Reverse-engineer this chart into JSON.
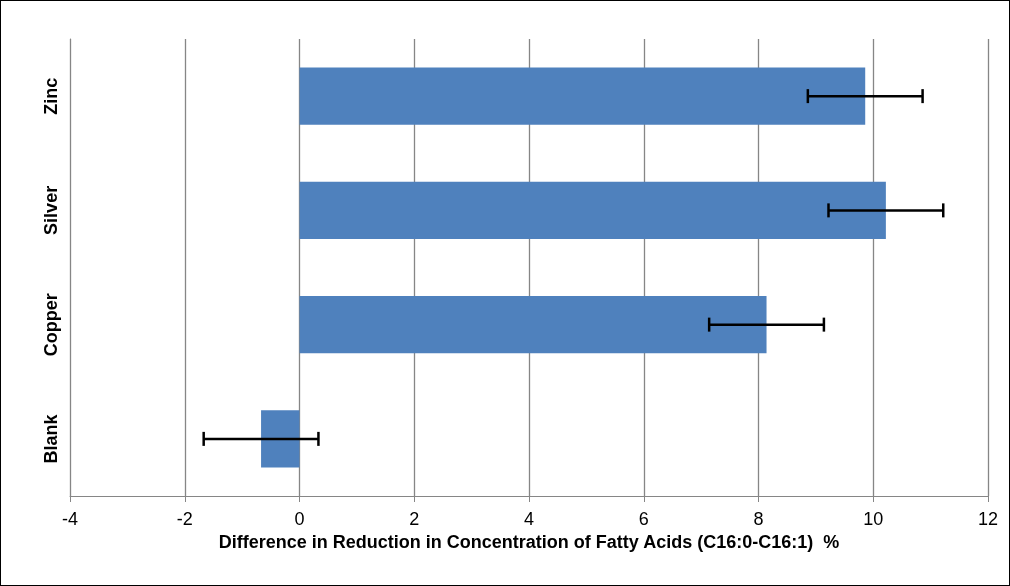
{
  "chart_data": {
    "type": "bar",
    "orientation": "horizontal",
    "xlabel": "Difference in Reduction in Concentration of Fatty Acids (C16:0-C16:1)  %",
    "categories": [
      "Zinc",
      "Silver",
      "Copper",
      "Blank"
    ],
    "values": [
      9.86,
      10.22,
      8.14,
      -0.67
    ],
    "errors": [
      1,
      1,
      1,
      1
    ],
    "color": "#4f81bd",
    "xlim": [
      -4,
      12
    ],
    "xticks": [
      -4,
      -2,
      0,
      2,
      4,
      6,
      8,
      10,
      12
    ],
    "grid": "x"
  }
}
